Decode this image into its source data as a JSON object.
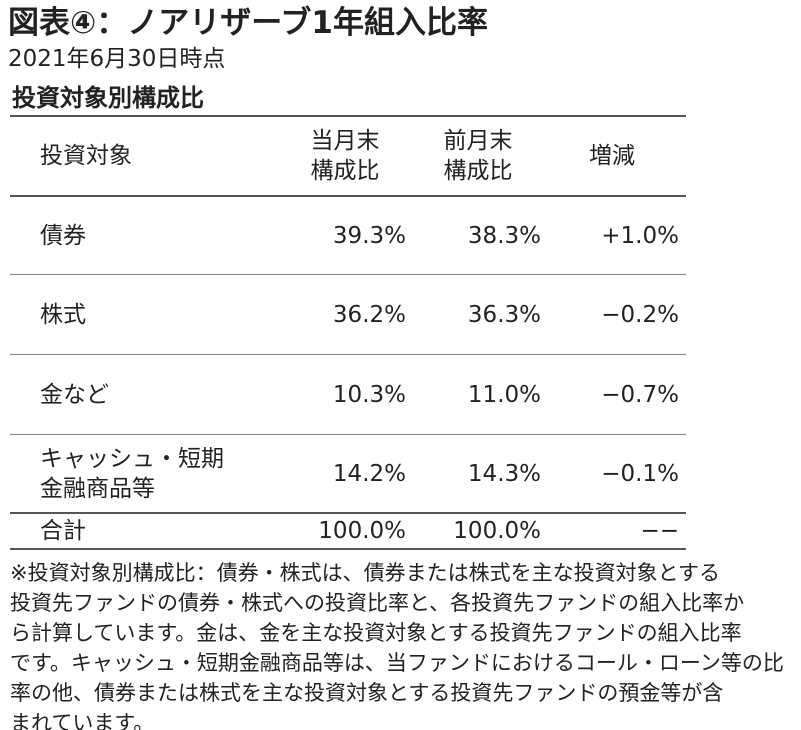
{
  "header": {
    "title": "図表④：ノアリザーブ1年組入比率",
    "subtitle": "2021年6月30日時点",
    "section": "投資対象別構成比"
  },
  "table": {
    "columns": [
      [
        "投資対象"
      ],
      [
        "当月末",
        "構成比"
      ],
      [
        "前月末",
        "構成比"
      ],
      [
        "増減"
      ]
    ],
    "rows": [
      {
        "label": [
          "債券"
        ],
        "cells": [
          "39.3%",
          "38.3%",
          "+1.0%"
        ]
      },
      {
        "label": [
          "株式"
        ],
        "cells": [
          "36.2%",
          "36.3%",
          "−0.2%"
        ]
      },
      {
        "label": [
          "金など"
        ],
        "cells": [
          "10.3%",
          "11.0%",
          "−0.7%"
        ]
      },
      {
        "label": [
          "キャッシュ・短期",
          "金融商品等"
        ],
        "cells": [
          "14.2%",
          "14.3%",
          "−0.1%"
        ]
      },
      {
        "label": [
          "合計"
        ],
        "cells": [
          "100.0%",
          "100.0%",
          "−−"
        ]
      }
    ]
  },
  "footnote": {
    "lines": [
      "※投資対象別構成比：債券・株式は、債券または株式を主な投資対象とする",
      "投資先ファンドの債券・株式への投資比率と、各投資先ファンドの組入比率か",
      "ら計算しています。金は、金を主な投資対象とする投資先ファンドの組入比率",
      "です。キャッシュ・短期金融商品等は、当ファンドにおけるコール・ローン等の比",
      "率の他、債券または株式を主な投資対象とする投資先ファンドの預金等が含",
      "まれています。"
    ]
  }
}
